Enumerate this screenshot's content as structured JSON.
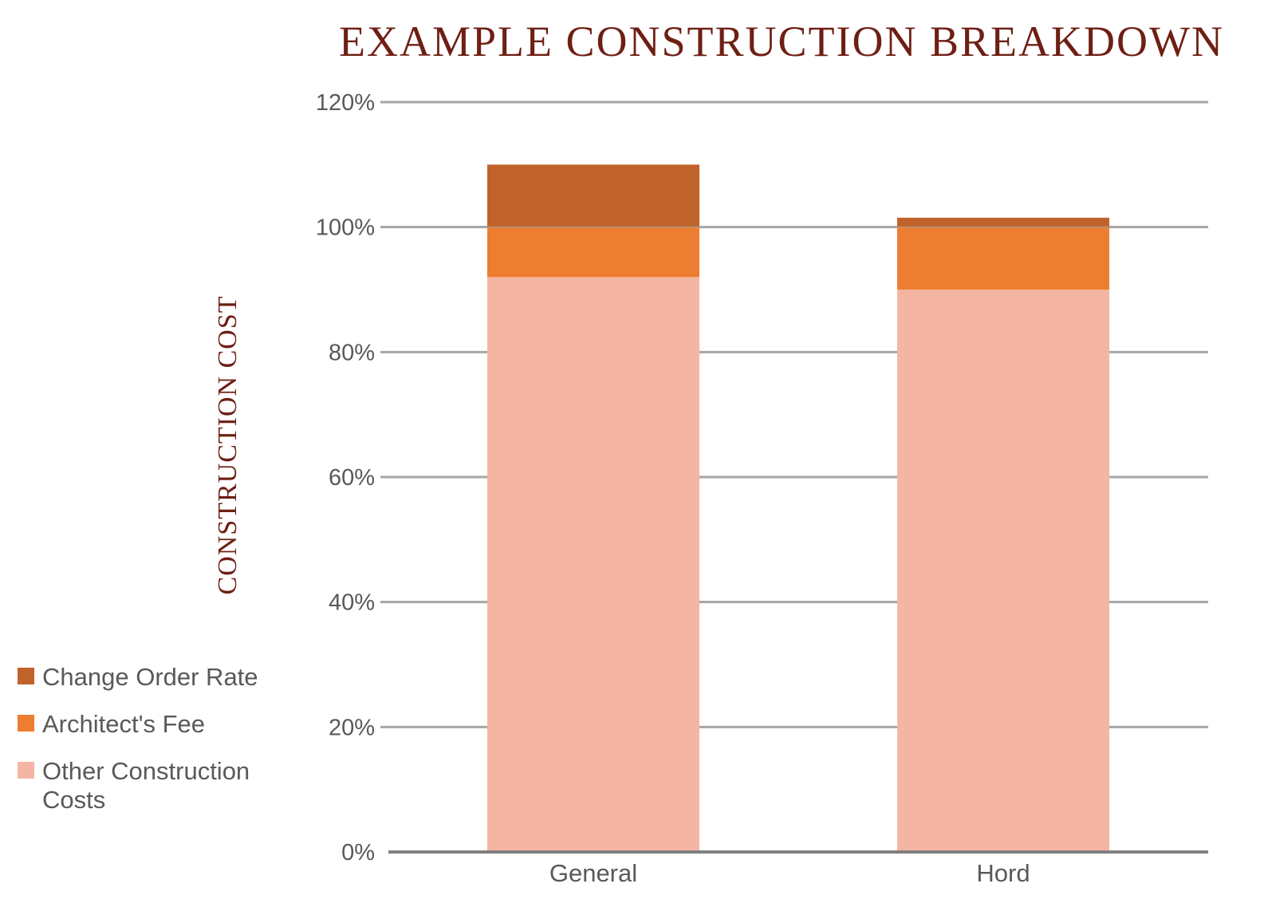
{
  "chart_data": {
    "type": "bar",
    "stacked": true,
    "title": "EXAMPLE CONSTRUCTION BREAKDOWN",
    "xlabel": "",
    "ylabel": "CONSTRUCTION COST",
    "ylim": [
      0,
      120
    ],
    "yticks": [
      "0%",
      "20%",
      "40%",
      "60%",
      "80%",
      "100%",
      "120%"
    ],
    "ytick_values": [
      0,
      20,
      40,
      60,
      80,
      100,
      120
    ],
    "categories": [
      "General",
      "Hord"
    ],
    "series": [
      {
        "name": "Other Construction Costs",
        "values": [
          92,
          90
        ],
        "color": "#f4b6a2"
      },
      {
        "name": "Architect's Fee",
        "values": [
          8,
          10
        ],
        "color": "#ed7d31"
      },
      {
        "name": "Change Order Rate",
        "values": [
          10,
          1.5
        ],
        "color": "#c0632a"
      }
    ],
    "legend": {
      "placement": "left",
      "order": [
        "Change Order Rate",
        "Architect's Fee",
        "Other Construction Costs"
      ]
    },
    "grid": true,
    "colors": {
      "title": "#6e1f14",
      "gridline": "#a6a6a6",
      "axis": "#808080",
      "text": "#595959"
    }
  }
}
